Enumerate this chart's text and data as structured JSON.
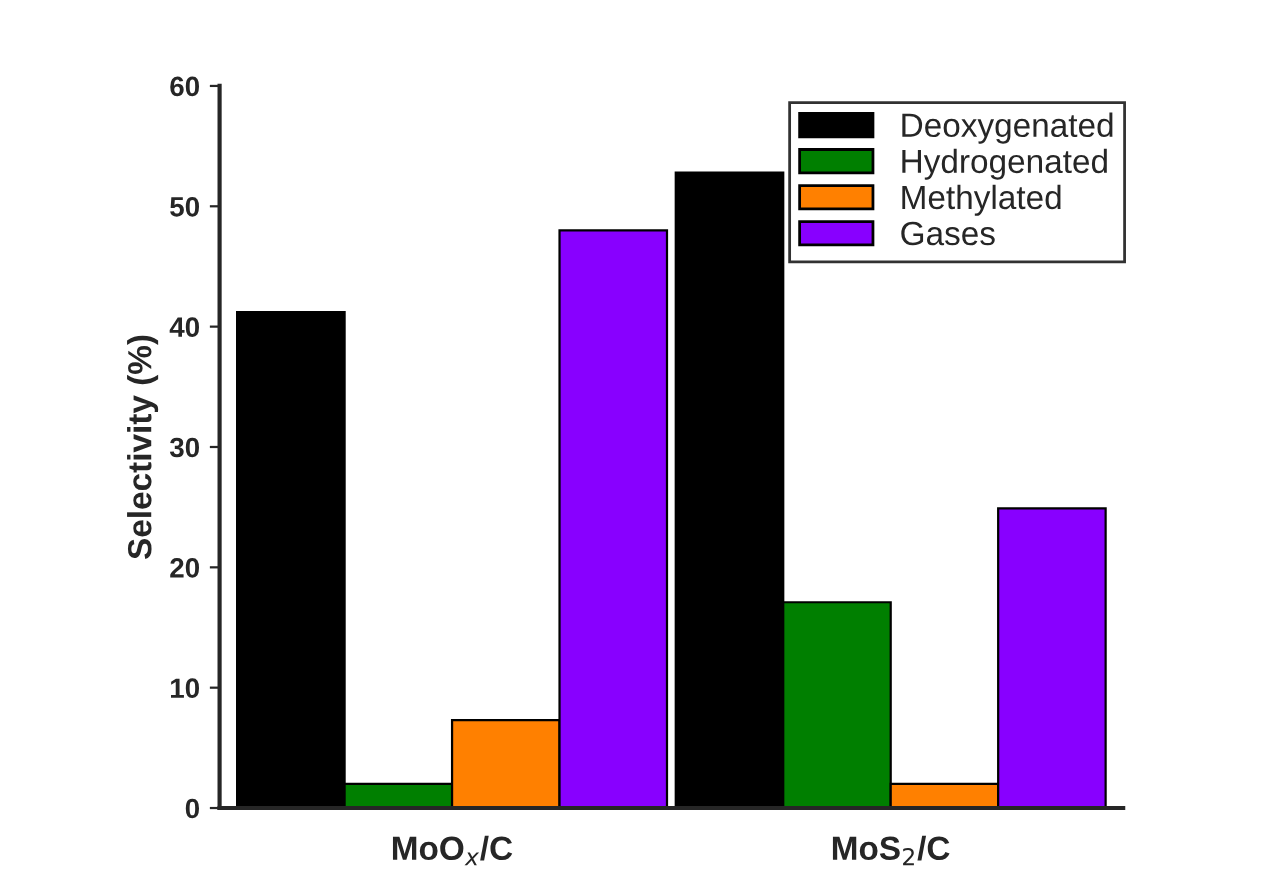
{
  "chart_data": {
    "type": "bar",
    "ylabel": "Selectivity (%)",
    "categories": [
      "MoO$_{x}$/C",
      "MoS$_{2}$/C"
    ],
    "series": [
      {
        "name": "Deoxygenated",
        "color": "#000000",
        "values": [
          41.2,
          52.8
        ]
      },
      {
        "name": "Hydrogenated",
        "color": "#007f00",
        "values": [
          2.0,
          17.1
        ]
      },
      {
        "name": "Methylated",
        "color": "#ff8000",
        "values": [
          7.3,
          2.0
        ]
      },
      {
        "name": "Gases",
        "color": "#8800ff",
        "values": [
          48.0,
          24.9
        ]
      }
    ],
    "ylim": [
      0,
      60
    ],
    "yticks": [
      0,
      10,
      20,
      30,
      40,
      50,
      60
    ],
    "grid": false,
    "legend": "top right"
  }
}
